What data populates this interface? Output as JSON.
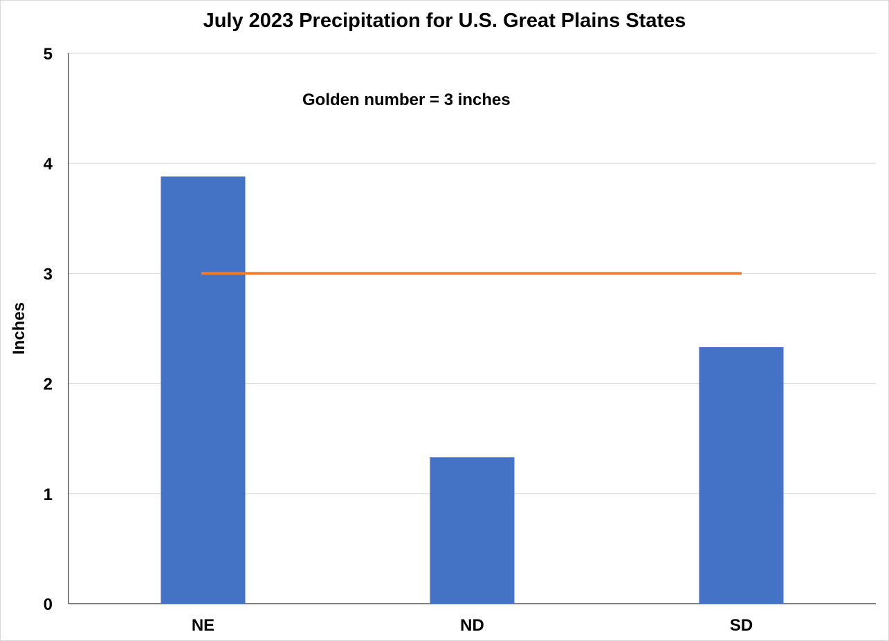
{
  "chart_data": {
    "type": "bar",
    "title": "July 2023 Precipitation for U.S. Great Plains States",
    "xlabel": "",
    "ylabel": "Inches",
    "categories": [
      "NE",
      "ND",
      "SD"
    ],
    "values": [
      3.88,
      1.33,
      2.33
    ],
    "ylim": [
      0,
      5
    ],
    "yticks": [
      0,
      1,
      2,
      3,
      4,
      5
    ],
    "grid": true,
    "bar_color": "#4472C4",
    "reference_line": {
      "value": 3,
      "color": "#ED7D31",
      "label": "Golden number = 3 inches"
    },
    "annotations": [
      "Golden number = 3 inches"
    ],
    "legend": null
  }
}
